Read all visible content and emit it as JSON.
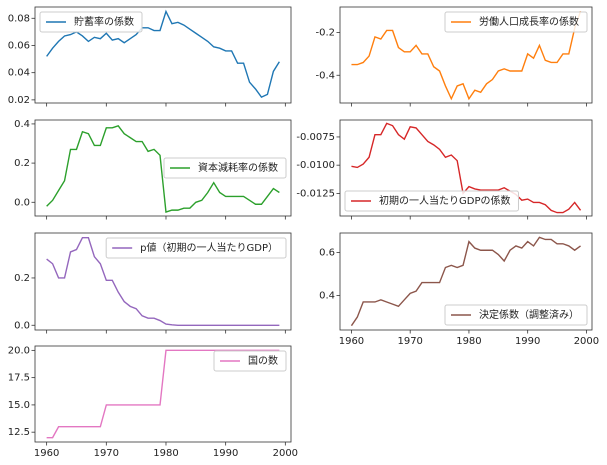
{
  "chart_data": [
    {
      "type": "line",
      "legend": "upper left",
      "show_xtick_labels": false,
      "x": [
        1960,
        1961,
        1962,
        1963,
        1964,
        1965,
        1966,
        1967,
        1968,
        1969,
        1970,
        1971,
        1972,
        1973,
        1974,
        1975,
        1976,
        1977,
        1978,
        1979,
        1980,
        1981,
        1982,
        1983,
        1984,
        1985,
        1986,
        1987,
        1988,
        1989,
        1990,
        1991,
        1992,
        1993,
        1994,
        1995,
        1996,
        1997,
        1998,
        1999
      ],
      "xlim": [
        1958.05,
        2000.95
      ],
      "xticks": [
        1960,
        1970,
        1980,
        1990,
        2000
      ],
      "ylim": [
        0.0177,
        0.0883
      ],
      "yticks": [
        0.02,
        0.04,
        0.06,
        0.08
      ],
      "series": [
        {
          "name": "貯蓄率の係数",
          "color": "#1f77b4",
          "values": [
            0.052,
            0.058,
            0.063,
            0.067,
            0.068,
            0.07,
            0.067,
            0.063,
            0.066,
            0.065,
            0.069,
            0.064,
            0.065,
            0.062,
            0.065,
            0.068,
            0.073,
            0.073,
            0.071,
            0.071,
            0.085,
            0.076,
            0.077,
            0.075,
            0.072,
            0.069,
            0.066,
            0.063,
            0.059,
            0.058,
            0.056,
            0.056,
            0.047,
            0.047,
            0.033,
            0.028,
            0.022,
            0.024,
            0.041,
            0.048
          ]
        }
      ]
    },
    {
      "type": "line",
      "legend": "upper right",
      "show_xtick_labels": false,
      "x": [
        1960,
        1961,
        1962,
        1963,
        1964,
        1965,
        1966,
        1967,
        1968,
        1969,
        1970,
        1971,
        1972,
        1973,
        1974,
        1975,
        1976,
        1977,
        1978,
        1979,
        1980,
        1981,
        1982,
        1983,
        1984,
        1985,
        1986,
        1987,
        1988,
        1989,
        1990,
        1991,
        1992,
        1993,
        1994,
        1995,
        1996,
        1997,
        1998,
        1999
      ],
      "xlim": [
        1958.05,
        2000.95
      ],
      "xticks": [
        1960,
        1970,
        1980,
        1990,
        2000
      ],
      "ylim": [
        -0.53,
        -0.08
      ],
      "yticks": [
        -0.4,
        -0.2
      ],
      "series": [
        {
          "name": "労働人口成長率の係数",
          "color": "#ff7f0e",
          "values": [
            -0.35,
            -0.35,
            -0.34,
            -0.31,
            -0.22,
            -0.23,
            -0.19,
            -0.19,
            -0.27,
            -0.29,
            -0.29,
            -0.26,
            -0.3,
            -0.3,
            -0.36,
            -0.38,
            -0.45,
            -0.51,
            -0.45,
            -0.44,
            -0.51,
            -0.47,
            -0.48,
            -0.44,
            -0.42,
            -0.38,
            -0.37,
            -0.38,
            -0.38,
            -0.38,
            -0.3,
            -0.32,
            -0.26,
            -0.33,
            -0.34,
            -0.34,
            -0.3,
            -0.3,
            -0.18,
            -0.1
          ]
        }
      ]
    },
    {
      "type": "line",
      "legend": "center right",
      "show_xtick_labels": false,
      "x": [
        1960,
        1961,
        1962,
        1963,
        1964,
        1965,
        1966,
        1967,
        1968,
        1969,
        1970,
        1971,
        1972,
        1973,
        1974,
        1975,
        1976,
        1977,
        1978,
        1979,
        1980,
        1981,
        1982,
        1983,
        1984,
        1985,
        1986,
        1987,
        1988,
        1989,
        1990,
        1991,
        1992,
        1993,
        1994,
        1995,
        1996,
        1997,
        1998,
        1999
      ],
      "xlim": [
        1958.05,
        2000.95
      ],
      "xticks": [
        1960,
        1970,
        1980,
        1990,
        2000
      ],
      "ylim": [
        -0.07,
        0.42
      ],
      "yticks": [
        {
          "value": 0,
          "label": "0.0"
        },
        0.2,
        0.4
      ],
      "series": [
        {
          "name": "資本減耗率の係数",
          "color": "#2ca02c",
          "values": [
            -0.02,
            0.01,
            0.06,
            0.11,
            0.27,
            0.27,
            0.36,
            0.35,
            0.29,
            0.29,
            0.38,
            0.38,
            0.39,
            0.35,
            0.33,
            0.31,
            0.31,
            0.26,
            0.27,
            0.24,
            -0.05,
            -0.04,
            -0.04,
            -0.03,
            -0.03,
            0.0,
            0.01,
            0.05,
            0.1,
            0.05,
            0.03,
            0.03,
            0.03,
            0.03,
            0.01,
            -0.01,
            -0.01,
            0.03,
            0.07,
            0.05
          ]
        }
      ]
    },
    {
      "type": "line",
      "legend": "lower left",
      "show_xtick_labels": false,
      "x": [
        1960,
        1961,
        1962,
        1963,
        1964,
        1965,
        1966,
        1967,
        1968,
        1969,
        1970,
        1971,
        1972,
        1973,
        1974,
        1975,
        1976,
        1977,
        1978,
        1979,
        1980,
        1981,
        1982,
        1983,
        1984,
        1985,
        1986,
        1987,
        1988,
        1989,
        1990,
        1991,
        1992,
        1993,
        1994,
        1995,
        1996,
        1997,
        1998,
        1999
      ],
      "xlim": [
        1958.05,
        2000.95
      ],
      "xticks": [
        1960,
        1970,
        1980,
        1990,
        2000
      ],
      "ylim": [
        -0.0145,
        -0.006
      ],
      "yticks": [
        -0.0125,
        {
          "value": -0.01,
          "label": "-0.0100"
        },
        -0.0075
      ],
      "series": [
        {
          "name": "初期の一人当たりGDPの係数",
          "color": "#d62728",
          "values": [
            -0.0101,
            -0.0102,
            -0.0099,
            -0.0093,
            -0.0073,
            -0.0073,
            -0.0063,
            -0.0065,
            -0.0073,
            -0.0077,
            -0.0066,
            -0.0067,
            -0.0073,
            -0.0079,
            -0.0082,
            -0.0086,
            -0.0093,
            -0.0091,
            -0.0096,
            -0.0125,
            -0.0119,
            -0.0121,
            -0.0122,
            -0.0122,
            -0.0122,
            -0.0122,
            -0.012,
            -0.0123,
            -0.0126,
            -0.0131,
            -0.013,
            -0.0133,
            -0.0133,
            -0.0135,
            -0.014,
            -0.0142,
            -0.0142,
            -0.0139,
            -0.0133,
            -0.014
          ]
        }
      ]
    },
    {
      "type": "line",
      "legend": "upper right",
      "show_xtick_labels": false,
      "x": [
        1960,
        1961,
        1962,
        1963,
        1964,
        1965,
        1966,
        1967,
        1968,
        1969,
        1970,
        1971,
        1972,
        1973,
        1974,
        1975,
        1976,
        1977,
        1978,
        1979,
        1980,
        1981,
        1982,
        1983,
        1984,
        1985,
        1986,
        1987,
        1988,
        1989,
        1990,
        1991,
        1992,
        1993,
        1994,
        1995,
        1996,
        1997,
        1998,
        1999
      ],
      "xlim": [
        1958.05,
        2000.95
      ],
      "xticks": [
        1960,
        1970,
        1980,
        1990,
        2000
      ],
      "ylim": [
        -0.02,
        0.39
      ],
      "yticks": [
        {
          "value": 0,
          "label": "0.0"
        },
        0.2
      ],
      "series": [
        {
          "name": "p値（初期の一人当たりGDP）",
          "color": "#9467bd",
          "values": [
            0.28,
            0.26,
            0.2,
            0.2,
            0.31,
            0.32,
            0.37,
            0.37,
            0.29,
            0.26,
            0.19,
            0.19,
            0.14,
            0.1,
            0.08,
            0.07,
            0.04,
            0.03,
            0.03,
            0.02,
            0.005,
            0.002,
            0,
            0,
            0,
            0,
            0,
            0,
            0,
            0,
            0,
            0,
            0,
            0,
            0,
            0,
            0,
            0,
            0,
            0
          ]
        }
      ]
    },
    {
      "type": "line",
      "legend": "lower right",
      "show_xtick_labels": true,
      "x": [
        1960,
        1961,
        1962,
        1963,
        1964,
        1965,
        1966,
        1967,
        1968,
        1969,
        1970,
        1971,
        1972,
        1973,
        1974,
        1975,
        1976,
        1977,
        1978,
        1979,
        1980,
        1981,
        1982,
        1983,
        1984,
        1985,
        1986,
        1987,
        1988,
        1989,
        1990,
        1991,
        1992,
        1993,
        1994,
        1995,
        1996,
        1997,
        1998,
        1999
      ],
      "xlim": [
        1958.05,
        2000.95
      ],
      "xticks": [
        1960,
        1970,
        1980,
        1990,
        2000
      ],
      "ylim": [
        0.24,
        0.69
      ],
      "yticks": [
        0.4,
        0.6
      ],
      "series": [
        {
          "name": "決定係数（調整済み）",
          "color": "#8c564b",
          "values": [
            0.26,
            0.3,
            0.37,
            0.37,
            0.37,
            0.38,
            0.37,
            0.36,
            0.35,
            0.38,
            0.41,
            0.42,
            0.46,
            0.46,
            0.46,
            0.46,
            0.53,
            0.54,
            0.53,
            0.54,
            0.65,
            0.62,
            0.61,
            0.61,
            0.61,
            0.59,
            0.56,
            0.61,
            0.63,
            0.62,
            0.65,
            0.63,
            0.67,
            0.66,
            0.66,
            0.64,
            0.64,
            0.63,
            0.61,
            0.63
          ]
        }
      ]
    },
    {
      "type": "line",
      "legend": "upper right",
      "show_xtick_labels": true,
      "x": [
        1960,
        1961,
        1962,
        1963,
        1964,
        1965,
        1966,
        1967,
        1968,
        1969,
        1970,
        1971,
        1972,
        1973,
        1974,
        1975,
        1976,
        1977,
        1978,
        1979,
        1980,
        1981,
        1982,
        1983,
        1984,
        1985,
        1986,
        1987,
        1988,
        1989,
        1990,
        1991,
        1992,
        1993,
        1994,
        1995,
        1996,
        1997,
        1998,
        1999
      ],
      "xlim": [
        1958.05,
        2000.95
      ],
      "xticks": [
        1960,
        1970,
        1980,
        1990,
        2000
      ],
      "ylim": [
        11.6,
        20.4
      ],
      "yticks": [
        12.5,
        {
          "value": 15,
          "label": "15.0"
        },
        17.5,
        {
          "value": 20,
          "label": "20.0"
        }
      ],
      "series": [
        {
          "name": "国の数",
          "color": "#e377c2",
          "values": [
            12,
            12,
            13,
            13,
            13,
            13,
            13,
            13,
            13,
            13,
            15,
            15,
            15,
            15,
            15,
            15,
            15,
            15,
            15,
            15,
            20,
            20,
            20,
            20,
            20,
            20,
            20,
            20,
            20,
            20,
            20,
            20,
            20,
            20,
            20,
            20,
            20,
            20,
            20,
            20
          ]
        }
      ]
    }
  ]
}
